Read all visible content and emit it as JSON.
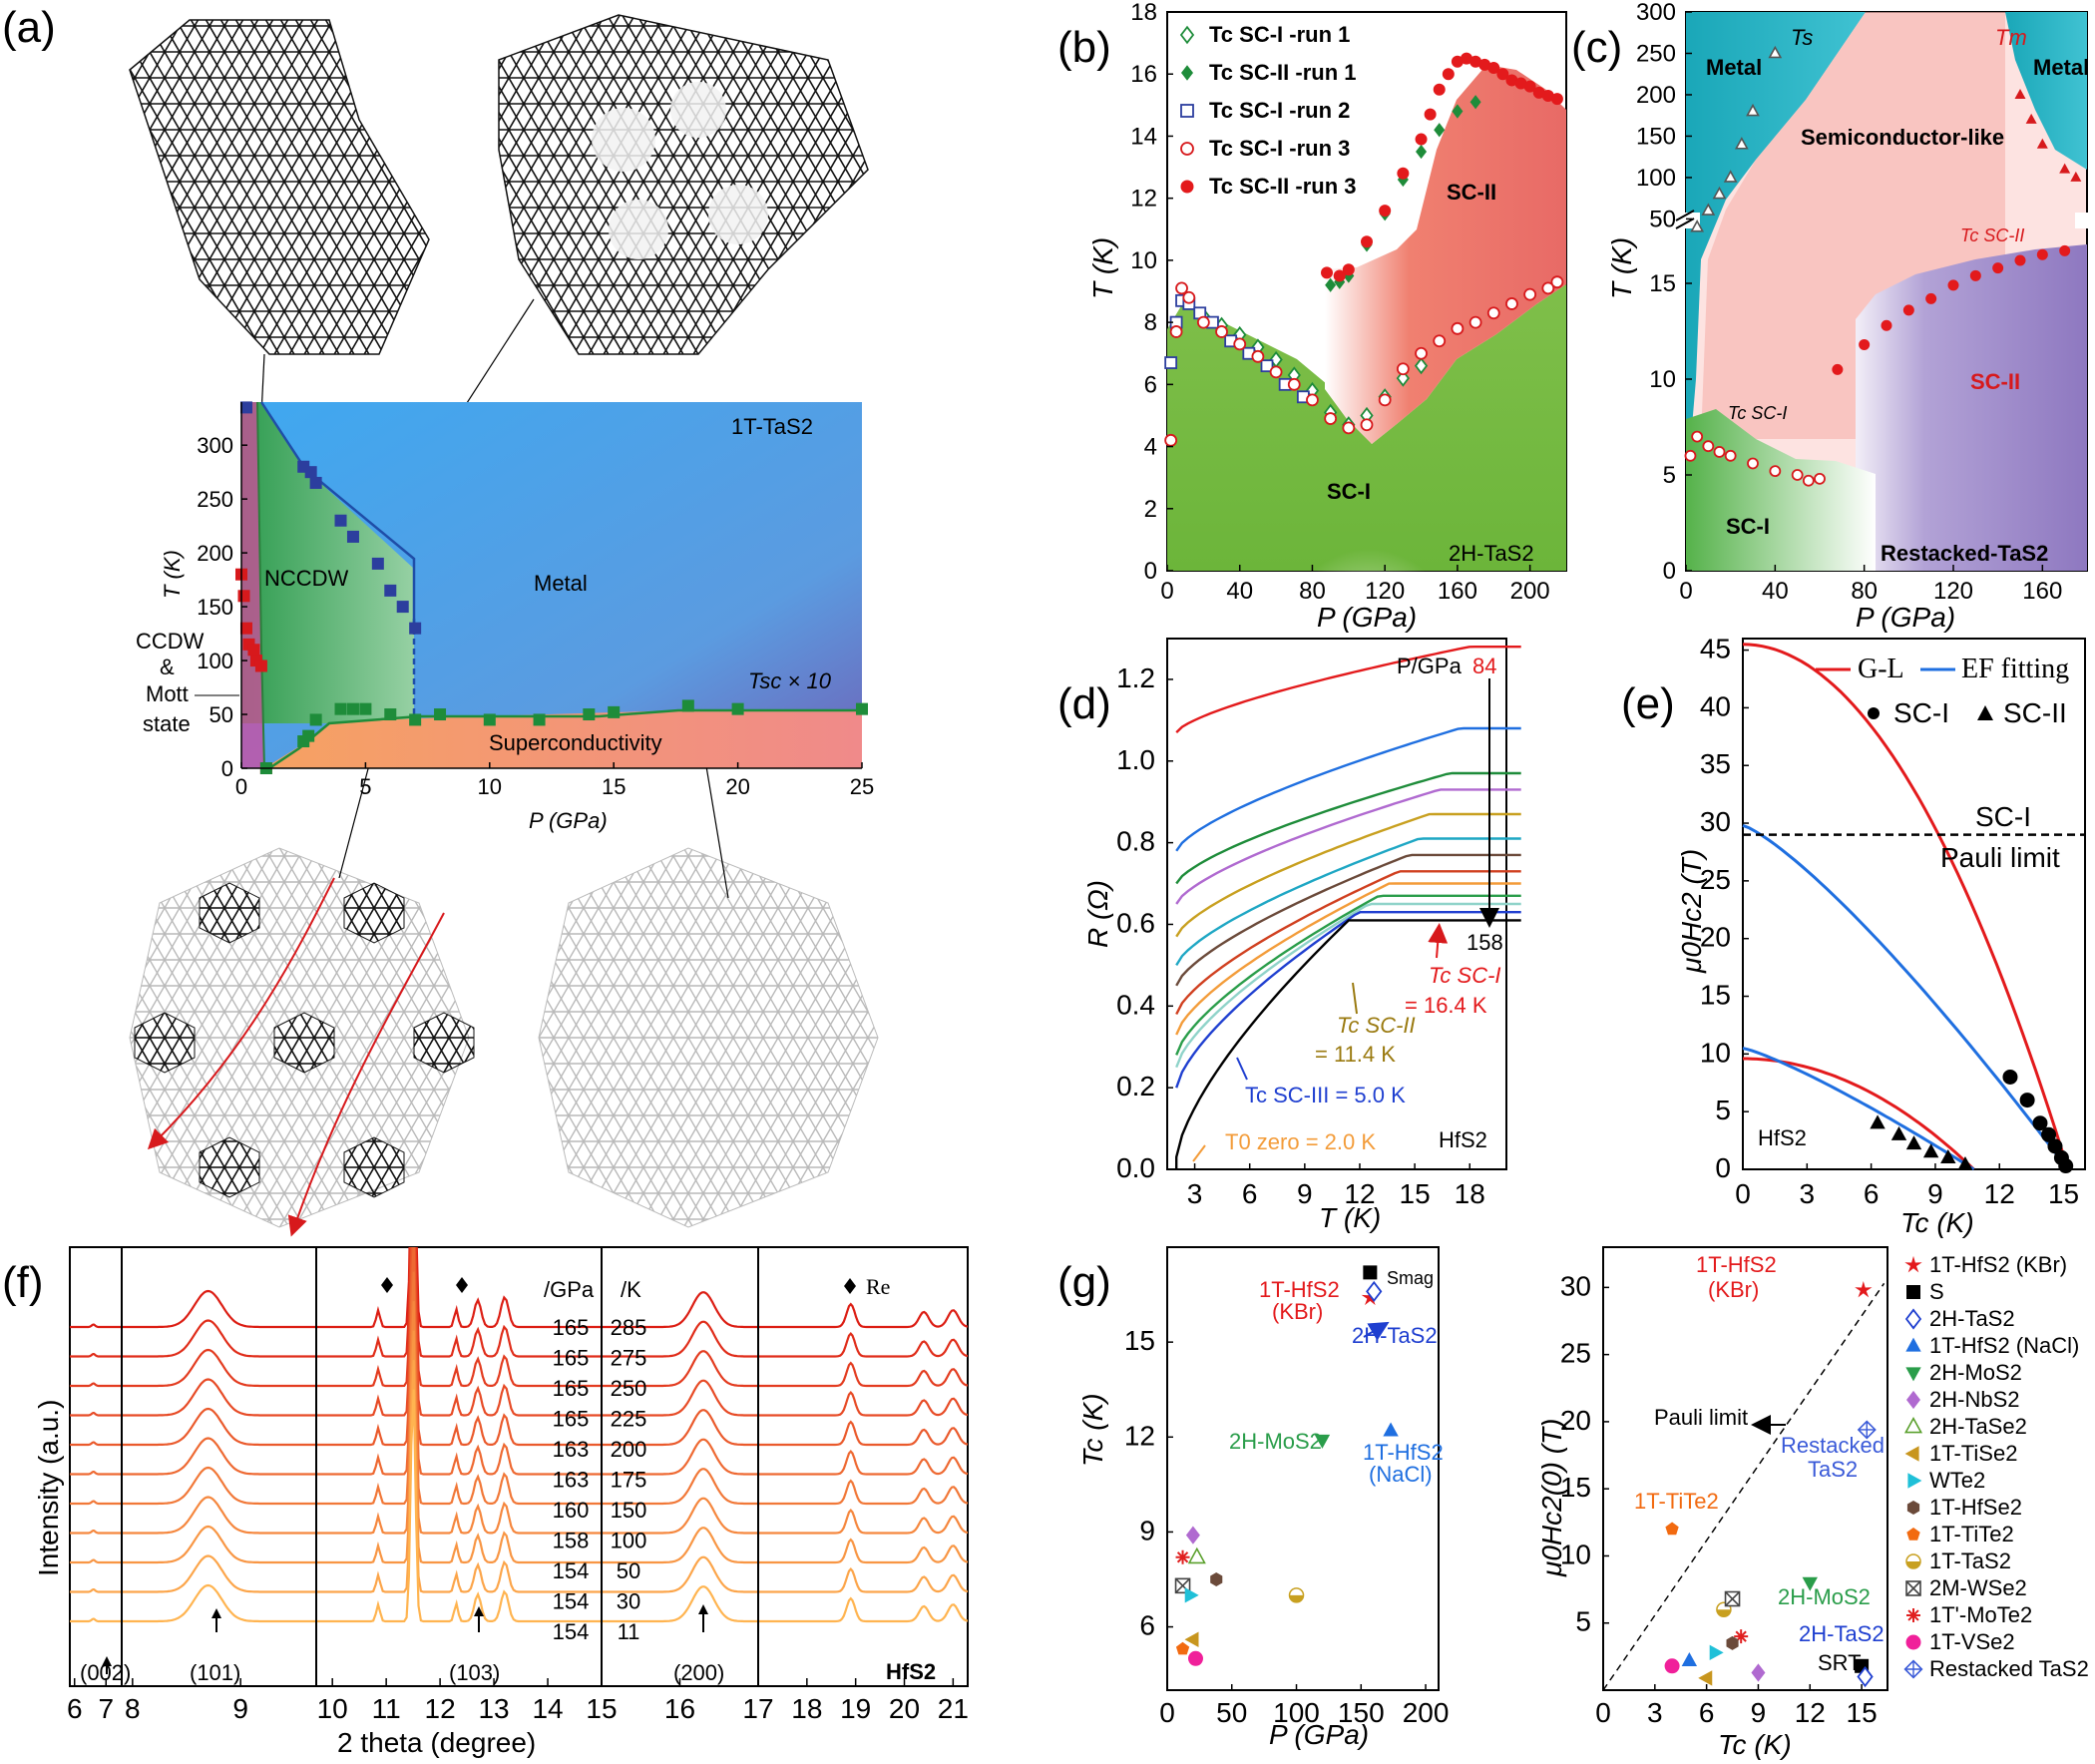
{
  "panel_labels": {
    "a": "(a)",
    "b": "(b)",
    "c": "(c)",
    "d": "(d)",
    "e": "(e)",
    "f": "(f)",
    "g": "(g)"
  },
  "colors": {
    "red": "#e31a1c",
    "green": "#1e8c3a",
    "blue": "#1f5fc9",
    "cyan": "#1fa7c4",
    "pink": "#f7b6b2",
    "purple": "#8e78c0",
    "olive": "#9aa03a",
    "orange": "#f39c3a"
  },
  "chart_data": [
    {
      "panel": "a",
      "type": "scatter",
      "title": "1T-TaS2",
      "xlabel": "P (GPa)",
      "ylabel": "T (K)",
      "xlim": [
        0,
        25
      ],
      "ylim": [
        0,
        340
      ],
      "xticks": [
        "0",
        "5",
        "10",
        "15",
        "20",
        "25"
      ],
      "yticks": [
        "0",
        "50",
        "100",
        "150",
        "200",
        "250",
        "300"
      ],
      "regions": [
        "NCCDW",
        "Metal",
        "Superconductivity",
        "CCDW & Mott state"
      ],
      "region_lines": [
        "CCDW",
        "&",
        "Mott",
        "state"
      ],
      "tsc_label": "Tsc × 10",
      "series": [
        {
          "name": "Mott/CCDW boundary",
          "color": "#d7191c",
          "x": [
            0,
            0.1,
            0.2,
            0.3,
            0.5,
            0.6,
            0.8,
            1.0
          ],
          "y": [
            180,
            160,
            130,
            115,
            110,
            100,
            95,
            0
          ]
        },
        {
          "name": "NCCDW-Metal",
          "color": "#2c3e9e",
          "x": [
            0.2,
            2.5,
            2.8,
            3.0,
            4.0,
            4.5,
            5.5,
            6.0,
            6.5,
            7.0
          ],
          "y": [
            335,
            280,
            275,
            265,
            230,
            215,
            190,
            165,
            150,
            130
          ]
        },
        {
          "name": "Tsc x10",
          "color": "#1e8c3a",
          "x": [
            1,
            2.5,
            2.7,
            3,
            4,
            4.5,
            5,
            6,
            7,
            8,
            10,
            12,
            14,
            15,
            18,
            20,
            25
          ],
          "y": [
            0,
            25,
            30,
            45,
            55,
            55,
            55,
            50,
            45,
            50,
            45,
            45,
            50,
            52,
            58,
            55,
            55
          ]
        }
      ]
    },
    {
      "panel": "b",
      "type": "scatter",
      "material": "2H-TaS2",
      "xlabel": "P (GPa)",
      "ylabel": "T (K)",
      "xlim": [
        0,
        220
      ],
      "ylim": [
        0,
        18
      ],
      "xticks": [
        "0",
        "40",
        "80",
        "120",
        "160",
        "200"
      ],
      "yticks": [
        "0",
        "2",
        "4",
        "6",
        "8",
        "10",
        "12",
        "14",
        "16",
        "18"
      ],
      "regions": [
        "SC-I",
        "SC-II"
      ],
      "legend": [
        "Tc SC-I -run 1",
        "Tc SC-II -run 1",
        "Tc SC-I -run 2",
        "Tc SC-I -run 3",
        "Tc SC-II -run 3"
      ],
      "series": [
        {
          "name": "Tc SC-I run 1",
          "marker": "diamond-open",
          "color": "#1e8c3a",
          "x": [
            20,
            30,
            40,
            50,
            60,
            70,
            80,
            90,
            100,
            110,
            120,
            130,
            140
          ],
          "y": [
            8.2,
            7.9,
            7.6,
            7.2,
            6.8,
            6.3,
            5.8,
            5.1,
            4.7,
            5.0,
            5.6,
            6.2,
            6.6
          ]
        },
        {
          "name": "Tc SC-II run 1",
          "marker": "diamond",
          "color": "#1e8c3a",
          "x": [
            90,
            95,
            100,
            110,
            120,
            130,
            140,
            150,
            160,
            170
          ],
          "y": [
            9.2,
            9.3,
            9.5,
            10.5,
            11.5,
            12.6,
            13.5,
            14.2,
            14.8,
            15.1
          ]
        },
        {
          "name": "Tc SC-I run 2",
          "marker": "square-open",
          "color": "#2c3e9e",
          "x": [
            2,
            5,
            8,
            12,
            18,
            25,
            35,
            45,
            55,
            65,
            75
          ],
          "y": [
            6.7,
            8.0,
            8.7,
            8.6,
            8.3,
            8.0,
            7.4,
            7.0,
            6.6,
            6.0,
            5.6
          ]
        },
        {
          "name": "Tc SC-I run 3",
          "marker": "circle-open",
          "color": "#d7191c",
          "x": [
            2,
            5,
            8,
            12,
            20,
            30,
            40,
            50,
            60,
            70,
            80,
            90,
            100,
            110,
            120,
            130,
            140,
            150,
            160,
            170,
            180,
            190,
            200,
            210,
            215
          ],
          "y": [
            4.2,
            7.7,
            9.1,
            8.8,
            8.0,
            7.7,
            7.3,
            6.9,
            6.4,
            6.0,
            5.5,
            4.9,
            4.6,
            4.7,
            5.5,
            6.5,
            7.0,
            7.4,
            7.8,
            8.0,
            8.3,
            8.6,
            8.9,
            9.1,
            9.3
          ]
        },
        {
          "name": "Tc SC-II run 3",
          "marker": "circle",
          "color": "#e31a1c",
          "x": [
            88,
            95,
            100,
            110,
            120,
            130,
            140,
            145,
            150,
            155,
            160,
            165,
            170,
            175,
            180,
            185,
            190,
            195,
            200,
            205,
            210,
            215
          ],
          "y": [
            9.6,
            9.5,
            9.7,
            10.6,
            11.6,
            12.8,
            13.9,
            14.7,
            15.5,
            16.0,
            16.4,
            16.5,
            16.4,
            16.3,
            16.2,
            16.0,
            15.8,
            15.7,
            15.6,
            15.4,
            15.3,
            15.2
          ]
        }
      ]
    },
    {
      "panel": "c",
      "type": "scatter",
      "material": "Restacked-TaS2",
      "xlabel": "P (GPa)",
      "ylabel": "T (K)",
      "xlim": [
        0,
        180
      ],
      "ylim_low": [
        0,
        17.5
      ],
      "ylim_high": [
        30,
        300
      ],
      "xticks": [
        "0",
        "40",
        "80",
        "120",
        "160"
      ],
      "yticks_low": [
        "0",
        "5",
        "10",
        "15"
      ],
      "yticks_high": [
        "50",
        "100",
        "150",
        "200",
        "250",
        "300"
      ],
      "regions": [
        "Metal",
        "Semiconductor-like",
        "Metal",
        "SC-I",
        "SC-II"
      ],
      "labels": {
        "ts": "Ts",
        "tm": "Tm",
        "tc_sc2": "Tc SC-II",
        "tc_sc1": "Tc SC-I"
      },
      "series": [
        {
          "name": "Ts",
          "marker": "triangle-open",
          "color": "#555555",
          "x": [
            5,
            10,
            15,
            20,
            25,
            30,
            40
          ],
          "y": [
            40,
            60,
            80,
            100,
            140,
            180,
            250
          ]
        },
        {
          "name": "Tm",
          "marker": "triangle",
          "color": "#d7191c",
          "x": [
            150,
            155,
            160,
            170,
            175
          ],
          "y": [
            200,
            170,
            140,
            110,
            100
          ]
        },
        {
          "name": "Tc SC-II",
          "marker": "circle",
          "color": "#e31a1c",
          "x": [
            68,
            80,
            90,
            100,
            110,
            120,
            130,
            140,
            150,
            160,
            170
          ],
          "y": [
            10.5,
            11.8,
            12.8,
            13.6,
            14.2,
            14.9,
            15.4,
            15.8,
            16.2,
            16.5,
            16.7
          ]
        },
        {
          "name": "Tc SC-I",
          "marker": "circle-open",
          "color": "#d7191c",
          "x": [
            2,
            5,
            10,
            15,
            20,
            30,
            40,
            50,
            55,
            60
          ],
          "y": [
            6.0,
            7.0,
            6.5,
            6.2,
            6.0,
            5.6,
            5.2,
            5.0,
            4.7,
            4.8
          ]
        }
      ]
    },
    {
      "panel": "d",
      "type": "line",
      "material": "HfS2",
      "xlabel": "T (K)",
      "ylabel": "R (Ω)",
      "xlim": [
        1.5,
        20
      ],
      "ylim": [
        0,
        1.3
      ],
      "xticks": [
        "3",
        "6",
        "9",
        "12",
        "15",
        "18"
      ],
      "yticks": [
        "0.0",
        "0.2",
        "0.4",
        "0.6",
        "0.8",
        "1.0",
        "1.2"
      ],
      "pressure_header": "P/GPa",
      "p_top": "84",
      "p_bottom": "158",
      "annotations": {
        "tc_sc1": "Tc SC-I",
        "tc_sc1_val": "= 16.4 K",
        "tc_sc2": "Tc SC-II",
        "tc_sc2_val": "= 11.4 K",
        "tc_sc3": "Tc SC-III = 5.0 K",
        "t0": "T0 zero = 2.0 K"
      },
      "series_plateau": [
        1.28,
        1.08,
        0.97,
        0.93,
        0.87,
        0.81,
        0.77,
        0.73,
        0.7,
        0.67,
        0.65,
        0.63,
        0.61
      ],
      "series_start": [
        1.07,
        0.78,
        0.7,
        0.65,
        0.57,
        0.5,
        0.45,
        0.38,
        0.33,
        0.28,
        0.25,
        0.2,
        0.03
      ]
    },
    {
      "panel": "e",
      "type": "line",
      "material": "HfS2",
      "xlabel": "Tc (K)",
      "ylabel": "μ0Hc2 (T)",
      "xlim": [
        0,
        16
      ],
      "ylim": [
        0,
        46
      ],
      "xticks": [
        "0",
        "3",
        "6",
        "9",
        "12",
        "15"
      ],
      "yticks": [
        "0",
        "5",
        "10",
        "15",
        "20",
        "25",
        "30",
        "35",
        "40",
        "45"
      ],
      "legend": [
        "G-L",
        "EF fitting",
        "SC-I",
        "SC-II"
      ],
      "pauli": {
        "value": 29,
        "label1": "SC-I",
        "label2": "Pauli limit"
      },
      "series": [
        {
          "name": "SC-I",
          "marker": "circle",
          "x": [
            12.5,
            13.3,
            13.9,
            14.3,
            14.6,
            14.9,
            15.1
          ],
          "y": [
            8,
            6,
            4,
            3,
            2,
            1,
            0.3
          ]
        },
        {
          "name": "SC-II",
          "marker": "triangle",
          "x": [
            6.3,
            7.3,
            8.0,
            8.8,
            9.6,
            10.4
          ],
          "y": [
            4,
            3,
            2.2,
            1.5,
            1,
            0.4
          ]
        }
      ]
    },
    {
      "panel": "f",
      "type": "line",
      "material": "HfS2",
      "xlabel": "2 theta (degree)",
      "ylabel": "Intensity (a.u.)",
      "xticks": [
        "6",
        "7",
        "8",
        "9",
        "10",
        "11",
        "12",
        "13",
        "14",
        "15",
        "16",
        "17",
        "18",
        "19",
        "20",
        "21"
      ],
      "col_headers": [
        "/GPa",
        "/K"
      ],
      "rows": [
        [
          "165",
          "285"
        ],
        [
          "165",
          "275"
        ],
        [
          "165",
          "250"
        ],
        [
          "165",
          "225"
        ],
        [
          "163",
          "200"
        ],
        [
          "163",
          "175"
        ],
        [
          "160",
          "150"
        ],
        [
          "158",
          "100"
        ],
        [
          "154",
          "50"
        ],
        [
          "154",
          "30"
        ],
        [
          "154",
          "11"
        ]
      ],
      "peak_labels": [
        "(002)",
        "(101)",
        "(103)",
        "(200)"
      ],
      "re_label": "Re"
    },
    {
      "panel": "g-left",
      "type": "scatter",
      "xlabel": "P (GPa)",
      "ylabel": "Tc (K)",
      "xlim": [
        0,
        210
      ],
      "ylim": [
        4,
        18
      ],
      "xticks": [
        "0",
        "50",
        "100",
        "150",
        "200"
      ],
      "yticks": [
        "6",
        "9",
        "12",
        "15"
      ],
      "labels": [
        "1T-HfS2",
        "(KBr)",
        "Smag",
        "2H-TaS2",
        "2H-MoS2",
        "1T-HfS2",
        "(NaCl)"
      ],
      "points": [
        {
          "name": "1T-HfS2 (KBr)",
          "x": 157,
          "y": 16.4
        },
        {
          "name": "Smag",
          "x": 157,
          "y": 17.2
        },
        {
          "name": "2H-TaS2",
          "x": 160,
          "y": 16.6
        },
        {
          "name": "2H-MoS2",
          "x": 120,
          "y": 11.9
        },
        {
          "name": "1T-HfS2 (NaCl)",
          "x": 173,
          "y": 12.2
        },
        {
          "name": "2H-NbS2",
          "x": 20,
          "y": 8.9
        },
        {
          "name": "2H-TaSe2",
          "x": 23,
          "y": 8.2
        },
        {
          "name": "1T'-MoTe2",
          "x": 12,
          "y": 8.2
        },
        {
          "name": "1T-HfSe2",
          "x": 38,
          "y": 7.5
        },
        {
          "name": "2M-WSe2",
          "x": 12,
          "y": 7.3
        },
        {
          "name": "WTe2",
          "x": 18,
          "y": 7.0
        },
        {
          "name": "1T-TaS2",
          "x": 100,
          "y": 7.0
        },
        {
          "name": "1T-TiSe2",
          "x": 20,
          "y": 5.6
        },
        {
          "name": "1T-TiTe2",
          "x": 12,
          "y": 5.3
        },
        {
          "name": "1T-VSe2",
          "x": 22,
          "y": 5.0
        }
      ]
    },
    {
      "panel": "g-right",
      "type": "scatter",
      "xlabel": "Tc (K)",
      "ylabel": "μ0Hc2(0) (T)",
      "xlim": [
        0,
        16.5
      ],
      "ylim": [
        0,
        33
      ],
      "xticks": [
        "0",
        "3",
        "6",
        "9",
        "12",
        "15"
      ],
      "yticks": [
        "5",
        "10",
        "15",
        "20",
        "25",
        "30"
      ],
      "labels": [
        "1T-HfS2",
        "(KBr)",
        "Pauli limit",
        "Restacked",
        "TaS2",
        "1T-TiTe2",
        "2H-MoS2",
        "2H-TaS2",
        "SRT"
      ],
      "points": [
        {
          "name": "1T-HfS2 (KBr)",
          "x": 15.1,
          "y": 29.8
        },
        {
          "name": "Restacked TaS2",
          "x": 15.3,
          "y": 19.4
        },
        {
          "name": "1T-TiTe2",
          "x": 4.0,
          "y": 12.0
        },
        {
          "name": "2H-MoS2",
          "x": 12.0,
          "y": 8.0
        },
        {
          "name": "1T-TaS2",
          "x": 7.0,
          "y": 6.0
        },
        {
          "name": "2M-WSe2",
          "x": 7.5,
          "y": 6.8
        },
        {
          "name": "1T'-MoTe2",
          "x": 8.0,
          "y": 4.0
        },
        {
          "name": "1T-HfSe2",
          "x": 7.5,
          "y": 3.5
        },
        {
          "name": "WTe2",
          "x": 6.5,
          "y": 2.8
        },
        {
          "name": "1T-HfS2 (NaCl)",
          "x": 5.0,
          "y": 2.2
        },
        {
          "name": "1T-VSe2",
          "x": 4.0,
          "y": 1.8
        },
        {
          "name": "2H-NbS2",
          "x": 9.0,
          "y": 1.3
        },
        {
          "name": "1T-TiSe2",
          "x": 6.0,
          "y": 0.9
        },
        {
          "name": "S",
          "x": 15.0,
          "y": 1.8
        },
        {
          "name": "2H-TaS2",
          "x": 15.2,
          "y": 1.0
        }
      ],
      "legend": [
        {
          "label": "1T-HfS2  (KBr)",
          "marker": "star",
          "color": "#e31a1c"
        },
        {
          "label": "S",
          "marker": "square",
          "color": "#000000"
        },
        {
          "label": "2H-TaS2",
          "marker": "diamond-open",
          "color": "#1f3fd0"
        },
        {
          "label": "1T-HfS2  (NaCl)",
          "marker": "triangle",
          "color": "#1f6fe0"
        },
        {
          "label": "2H-MoS2",
          "marker": "triangle-down",
          "color": "#2a9d4a"
        },
        {
          "label": "2H-NbS2",
          "marker": "diamond",
          "color": "#b06ad0"
        },
        {
          "label": "2H-TaSe2",
          "marker": "triangle-open",
          "color": "#5aa02c"
        },
        {
          "label": "1T-TiSe2",
          "marker": "triangle-left",
          "color": "#c8961e"
        },
        {
          "label": "WTe2",
          "marker": "triangle-right",
          "color": "#1fc0d8"
        },
        {
          "label": "1T-HfSe2",
          "marker": "hexagon",
          "color": "#6b4a3a"
        },
        {
          "label": "1T-TiTe2",
          "marker": "pentagon",
          "color": "#f26a10"
        },
        {
          "label": "1T-TaS2",
          "marker": "half-circle",
          "color": "#c8a020"
        },
        {
          "label": "2M-WSe2",
          "marker": "x-square",
          "color": "#444444"
        },
        {
          "label": "1T'-MoTe2",
          "marker": "asterisk",
          "color": "#e02020"
        },
        {
          "label": "1T-VSe2",
          "marker": "circle",
          "color": "#f0209a"
        },
        {
          "label": "Restacked TaS2",
          "marker": "cross-diamond",
          "color": "#3a5ad8"
        }
      ]
    }
  ]
}
